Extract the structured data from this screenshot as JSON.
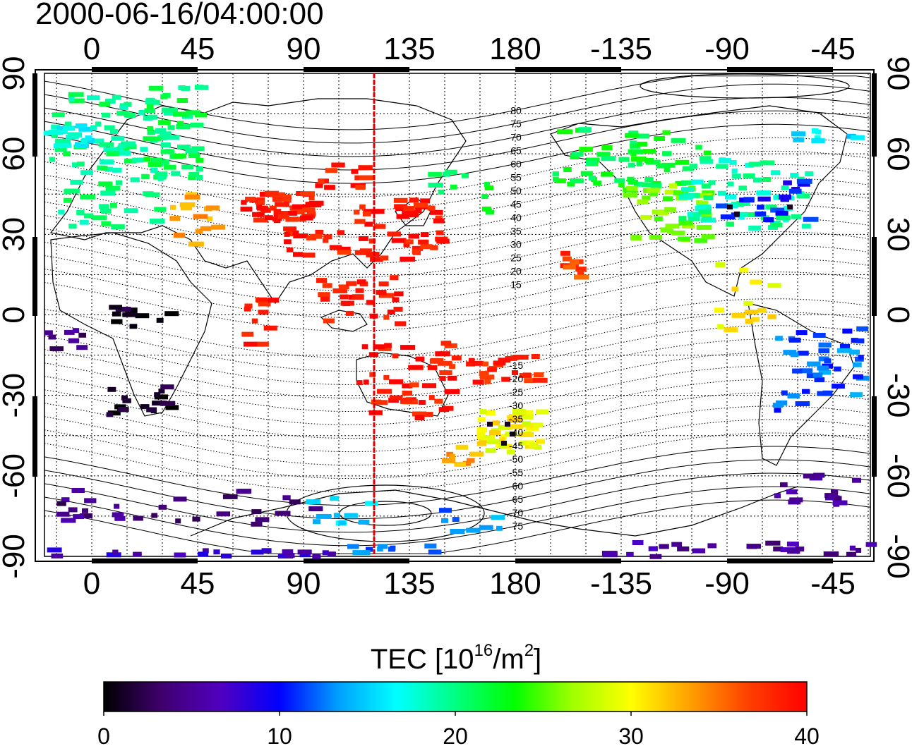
{
  "title": "2000-06-16/04:00:00",
  "map": {
    "lon_ticks": [
      "0",
      "45",
      "90",
      "135",
      "180",
      "-135",
      "-90",
      "-45"
    ],
    "lat_ticks": [
      "90",
      "60",
      "30",
      "0",
      "-30",
      "-60",
      "-90"
    ],
    "meridian_marker_lon": 120,
    "meridian_marker_color": "#e00000",
    "contour_labels": [
      "80",
      "75",
      "70",
      "65",
      "60",
      "55",
      "50",
      "45",
      "40",
      "35",
      "30",
      "25",
      "20",
      "15",
      "-15",
      "-20",
      "-25",
      "-30",
      "-35",
      "-40",
      "-45",
      "-50",
      "-55",
      "-60",
      "-65",
      "-70",
      "-75"
    ]
  },
  "colorbar": {
    "label_main": "TEC  [10",
    "label_exp": "16",
    "label_unit": "/m",
    "label_exp2": "2",
    "label_end": "]",
    "min": 0,
    "max": 40,
    "ticks": [
      "0",
      "10",
      "20",
      "30",
      "40"
    ],
    "colors": [
      "#000000",
      "#400070",
      "#5000c0",
      "#0000ff",
      "#00a0ff",
      "#00ffff",
      "#00ff80",
      "#00ff00",
      "#a0ff00",
      "#ffff00",
      "#ffa000",
      "#ff4000",
      "#ff0000"
    ]
  }
}
